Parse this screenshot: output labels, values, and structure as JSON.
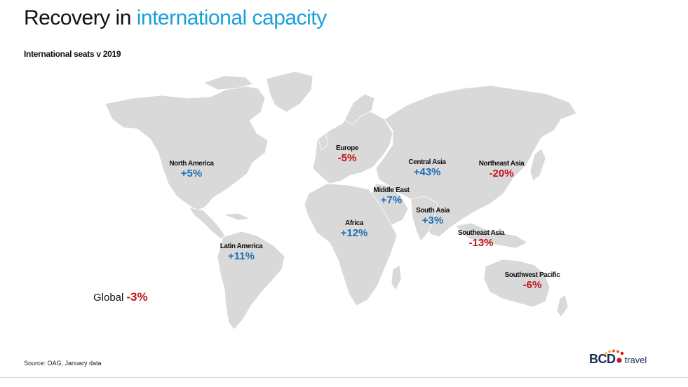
{
  "title": {
    "prefix": "Recovery in ",
    "accent": "international capacity"
  },
  "subtitle": "International seats v 2019",
  "regions": [
    {
      "id": "north-america",
      "name": "North America",
      "value": "+5%",
      "trend": "positive"
    },
    {
      "id": "latin-america",
      "name": "Latin America",
      "value": "+11%",
      "trend": "positive"
    },
    {
      "id": "europe",
      "name": "Europe",
      "value": "-5%",
      "trend": "negative"
    },
    {
      "id": "africa",
      "name": "Africa",
      "value": "+12%",
      "trend": "positive"
    },
    {
      "id": "middle-east",
      "name": "Middle East",
      "value": "+7%",
      "trend": "positive"
    },
    {
      "id": "central-asia",
      "name": "Central Asia",
      "value": "+43%",
      "trend": "positive"
    },
    {
      "id": "south-asia",
      "name": "South Asia",
      "value": "+3%",
      "trend": "positive"
    },
    {
      "id": "northeast-asia",
      "name": "Northeast Asia",
      "value": "-20%",
      "trend": "negative"
    },
    {
      "id": "southeast-asia",
      "name": "Southeast Asia",
      "value": "-13%",
      "trend": "negative"
    },
    {
      "id": "southwest-pacific",
      "name": "Southwest Pacific",
      "value": "-6%",
      "trend": "negative"
    }
  ],
  "global": {
    "name": "Global",
    "value": "-3%",
    "trend": "negative"
  },
  "source": "Source: OAG, January data",
  "logo": {
    "brand": "BCD",
    "suffix": "travel"
  },
  "colors": {
    "accent": "#1aa0dc",
    "positive": "#1d6fb4",
    "negative": "#c2141b",
    "land": "#d9d9d9",
    "logo_dots": [
      "#f2a900",
      "#e4572e",
      "#c2141b"
    ]
  }
}
